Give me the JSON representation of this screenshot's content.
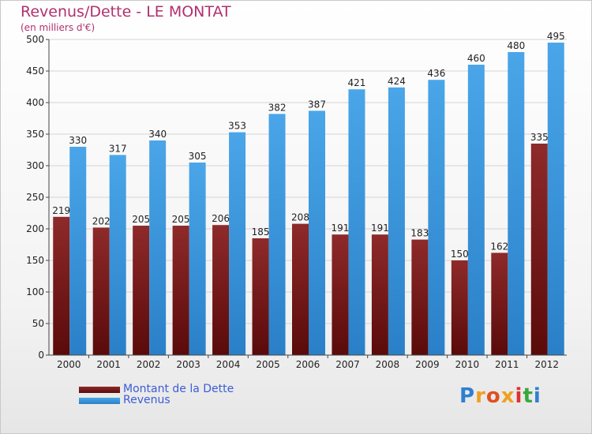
{
  "title": "Revenus/Dette - LE MONTAT",
  "subtitle": "(en milliers d'€)",
  "colors": {
    "debt": "#7a1616",
    "revenue": "#3d9be0",
    "title": "#b03070",
    "legend_text": "#3c5cd8"
  },
  "chart_data": {
    "type": "bar",
    "title": "Revenus/Dette - LE MONTAT",
    "subtitle": "(en milliers d'€)",
    "xlabel": "",
    "ylabel": "",
    "categories": [
      "2000",
      "2001",
      "2002",
      "2003",
      "2004",
      "2005",
      "2006",
      "2007",
      "2008",
      "2009",
      "2010",
      "2011",
      "2012"
    ],
    "series": [
      {
        "name": "Montant de la Dette",
        "values": [
          219,
          202,
          205,
          205,
          206,
          185,
          208,
          191,
          191,
          183,
          150,
          162,
          335
        ]
      },
      {
        "name": "Revenus",
        "values": [
          330,
          317,
          340,
          305,
          353,
          382,
          387,
          421,
          424,
          436,
          460,
          480,
          495
        ]
      }
    ],
    "ylim": [
      0,
      500
    ],
    "yticks": [
      0,
      50,
      100,
      150,
      200,
      250,
      300,
      350,
      400,
      450,
      500
    ],
    "grid": true,
    "legend_position": "bottom-left"
  },
  "legend": {
    "debt_label": "Montant de la Dette",
    "revenue_label": "Revenus"
  },
  "logo": {
    "letters": [
      "P",
      "r",
      "o",
      "x",
      "i",
      "t",
      "i"
    ],
    "colors": [
      "#2f7fd0",
      "#f0a020",
      "#e05020",
      "#f0a020",
      "#e03030",
      "#3aa83a",
      "#2f7fd0"
    ]
  }
}
